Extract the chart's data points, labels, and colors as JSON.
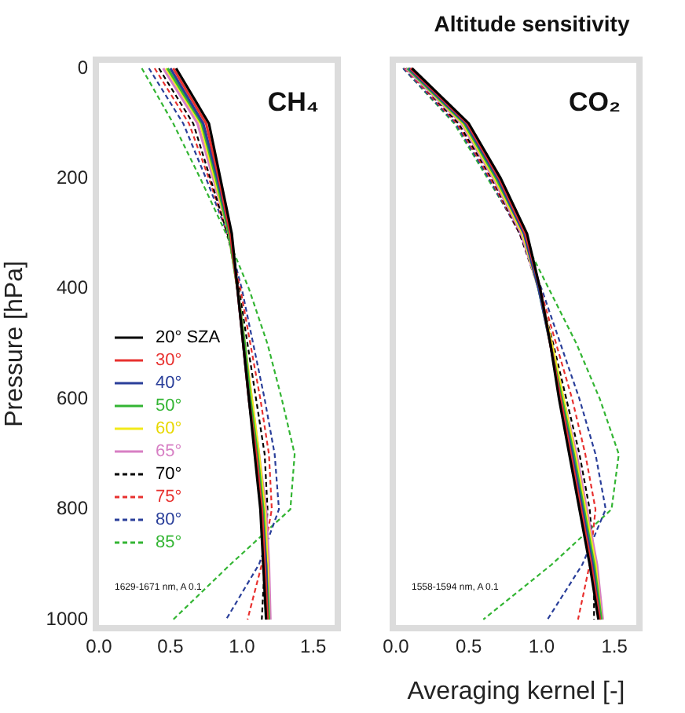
{
  "chart_data": [
    {
      "type": "line",
      "ylabel": "Pressure [hPa]",
      "annotations": [
        "CH₄",
        "1629-1671 nm, A 0.1"
      ],
      "xlim": [
        0,
        1.65
      ],
      "xticks": [
        {
          "value": 0,
          "label": "0.0"
        },
        {
          "value": 0.5,
          "label": "0.5"
        },
        {
          "value": 1,
          "label": "1.0"
        },
        {
          "value": 1.5,
          "label": "1.5"
        }
      ],
      "ylim": [
        1010,
        -10
      ],
      "yticks": [
        0,
        200,
        400,
        600,
        800,
        1000
      ],
      "grid": false,
      "legend": "center left",
      "marker": "none",
      "series": [
        {
          "name": "20° SZA",
          "color": "#000000",
          "line_style": "solid",
          "x": [
            0.54,
            0.77,
            0.85,
            0.93,
            0.97,
            1.01,
            1.05,
            1.09,
            1.13,
            1.15,
            1.17
          ],
          "values": [
            0,
            100,
            200,
            300,
            400,
            500,
            600,
            700,
            800,
            900,
            1000
          ]
        },
        {
          "name": "30°",
          "color": "#e8312f",
          "line_style": "solid",
          "x": [
            0.52,
            0.75,
            0.84,
            0.92,
            0.97,
            1.01,
            1.05,
            1.1,
            1.14,
            1.16,
            1.18
          ],
          "values": [
            0,
            100,
            200,
            300,
            400,
            500,
            600,
            700,
            800,
            900,
            1000
          ]
        },
        {
          "name": "40°",
          "color": "#2a3f9a",
          "line_style": "solid",
          "x": [
            0.5,
            0.73,
            0.83,
            0.92,
            0.97,
            1.01,
            1.05,
            1.1,
            1.14,
            1.17,
            1.18
          ],
          "values": [
            0,
            100,
            200,
            300,
            400,
            500,
            600,
            700,
            800,
            900,
            1000
          ]
        },
        {
          "name": "50°",
          "color": "#33b533",
          "line_style": "solid",
          "x": [
            0.48,
            0.72,
            0.82,
            0.91,
            0.97,
            1.02,
            1.06,
            1.11,
            1.15,
            1.17,
            1.19
          ],
          "values": [
            0,
            100,
            200,
            300,
            400,
            500,
            600,
            700,
            800,
            900,
            1000
          ]
        },
        {
          "name": "60°",
          "color": "#f2ea1a",
          "line_style": "solid",
          "x": [
            0.47,
            0.71,
            0.81,
            0.91,
            0.97,
            1.02,
            1.07,
            1.12,
            1.16,
            1.18,
            1.19
          ],
          "values": [
            0,
            100,
            200,
            300,
            400,
            500,
            600,
            700,
            800,
            900,
            1000
          ]
        },
        {
          "name": "65°",
          "color": "#d77fc4",
          "line_style": "solid",
          "x": [
            0.45,
            0.69,
            0.8,
            0.91,
            0.97,
            1.02,
            1.07,
            1.12,
            1.17,
            1.19,
            1.2
          ],
          "values": [
            0,
            100,
            200,
            300,
            400,
            500,
            600,
            700,
            800,
            900,
            1000
          ]
        },
        {
          "name": "70°",
          "color": "#000000",
          "line_style": "dashed",
          "x": [
            0.42,
            0.66,
            0.78,
            0.9,
            0.98,
            1.04,
            1.1,
            1.16,
            1.18,
            1.16,
            1.14
          ],
          "values": [
            0,
            100,
            200,
            300,
            400,
            500,
            600,
            700,
            800,
            900,
            1000
          ]
        },
        {
          "name": "75°",
          "color": "#e8312f",
          "line_style": "dashed",
          "x": [
            0.39,
            0.63,
            0.77,
            0.9,
            0.99,
            1.06,
            1.13,
            1.19,
            1.21,
            1.14,
            1.04
          ],
          "values": [
            0,
            100,
            200,
            300,
            400,
            500,
            600,
            700,
            800,
            900,
            1000
          ]
        },
        {
          "name": "80°",
          "color": "#2a3f9a",
          "line_style": "dashed",
          "x": [
            0.35,
            0.59,
            0.75,
            0.9,
            1,
            1.08,
            1.16,
            1.23,
            1.26,
            1.12,
            0.89
          ],
          "values": [
            0,
            100,
            200,
            300,
            400,
            500,
            600,
            700,
            800,
            900,
            1000
          ]
        },
        {
          "name": "85°",
          "color": "#33b533",
          "line_style": "dashed",
          "x": [
            0.3,
            0.52,
            0.71,
            0.89,
            1.05,
            1.18,
            1.28,
            1.37,
            1.34,
            0.92,
            0.52
          ],
          "values": [
            0,
            100,
            200,
            300,
            400,
            500,
            600,
            700,
            800,
            900,
            1000
          ]
        }
      ]
    },
    {
      "type": "line",
      "title": "Altitude sensitivity",
      "xlabel": "Averaging kernel [-]",
      "annotations": [
        "CO₂",
        "1558-1594 nm, A 0.1"
      ],
      "xlim": [
        0,
        1.65
      ],
      "xticks": [
        {
          "value": 0,
          "label": "0.0"
        },
        {
          "value": 0.5,
          "label": "0.5"
        },
        {
          "value": 1,
          "label": "1.0"
        },
        {
          "value": 1.5,
          "label": "1.5"
        }
      ],
      "ylim": [
        1010,
        -10
      ],
      "yticks": [
        0,
        200,
        400,
        600,
        800,
        1000
      ],
      "tick_labels": "x",
      "grid": false,
      "marker": "none",
      "series": [
        {
          "color": "#000000",
          "line_style": "solid",
          "x": [
            0.11,
            0.5,
            0.72,
            0.9,
            0.99,
            1.06,
            1.12,
            1.19,
            1.26,
            1.33,
            1.39
          ],
          "values": [
            0,
            100,
            200,
            300,
            400,
            500,
            600,
            700,
            800,
            900,
            1000
          ]
        },
        {
          "color": "#e8312f",
          "line_style": "solid",
          "x": [
            0.1,
            0.49,
            0.71,
            0.89,
            0.99,
            1.06,
            1.13,
            1.2,
            1.27,
            1.34,
            1.4
          ],
          "values": [
            0,
            100,
            200,
            300,
            400,
            500,
            600,
            700,
            800,
            900,
            1000
          ]
        },
        {
          "color": "#2a3f9a",
          "line_style": "solid",
          "x": [
            0.09,
            0.48,
            0.7,
            0.88,
            0.98,
            1.06,
            1.13,
            1.21,
            1.28,
            1.35,
            1.4
          ],
          "values": [
            0,
            100,
            200,
            300,
            400,
            500,
            600,
            700,
            800,
            900,
            1000
          ]
        },
        {
          "color": "#33b533",
          "line_style": "solid",
          "x": [
            0.08,
            0.47,
            0.69,
            0.88,
            0.98,
            1.06,
            1.14,
            1.22,
            1.29,
            1.36,
            1.41
          ],
          "values": [
            0,
            100,
            200,
            300,
            400,
            500,
            600,
            700,
            800,
            900,
            1000
          ]
        },
        {
          "color": "#f2ea1a",
          "line_style": "solid",
          "x": [
            0.08,
            0.46,
            0.68,
            0.87,
            0.98,
            1.07,
            1.15,
            1.23,
            1.3,
            1.37,
            1.41
          ],
          "values": [
            0,
            100,
            200,
            300,
            400,
            500,
            600,
            700,
            800,
            900,
            1000
          ]
        },
        {
          "color": "#d77fc4",
          "line_style": "solid",
          "x": [
            0.07,
            0.45,
            0.67,
            0.86,
            0.98,
            1.07,
            1.15,
            1.24,
            1.31,
            1.38,
            1.42
          ],
          "values": [
            0,
            100,
            200,
            300,
            400,
            500,
            600,
            700,
            800,
            900,
            1000
          ]
        },
        {
          "color": "#000000",
          "line_style": "dashed",
          "x": [
            0.07,
            0.43,
            0.66,
            0.85,
            0.98,
            1.08,
            1.17,
            1.26,
            1.33,
            1.36,
            1.36
          ],
          "values": [
            0,
            100,
            200,
            300,
            400,
            500,
            600,
            700,
            800,
            900,
            1000
          ]
        },
        {
          "color": "#e8312f",
          "line_style": "dashed",
          "x": [
            0.06,
            0.42,
            0.65,
            0.85,
            0.99,
            1.1,
            1.21,
            1.3,
            1.37,
            1.33,
            1.25
          ],
          "values": [
            0,
            100,
            200,
            300,
            400,
            500,
            600,
            700,
            800,
            900,
            1000
          ]
        },
        {
          "color": "#2a3f9a",
          "line_style": "dashed",
          "x": [
            0.05,
            0.41,
            0.64,
            0.85,
            1,
            1.13,
            1.26,
            1.37,
            1.44,
            1.28,
            1.04
          ],
          "values": [
            0,
            100,
            200,
            300,
            400,
            500,
            600,
            700,
            800,
            900,
            1000
          ]
        },
        {
          "color": "#33b533",
          "line_style": "dashed",
          "x": [
            0.05,
            0.4,
            0.63,
            0.86,
            1.05,
            1.24,
            1.4,
            1.53,
            1.48,
            1.07,
            0.6
          ],
          "values": [
            0,
            100,
            200,
            300,
            400,
            500,
            600,
            700,
            800,
            900,
            1000
          ]
        }
      ]
    }
  ]
}
